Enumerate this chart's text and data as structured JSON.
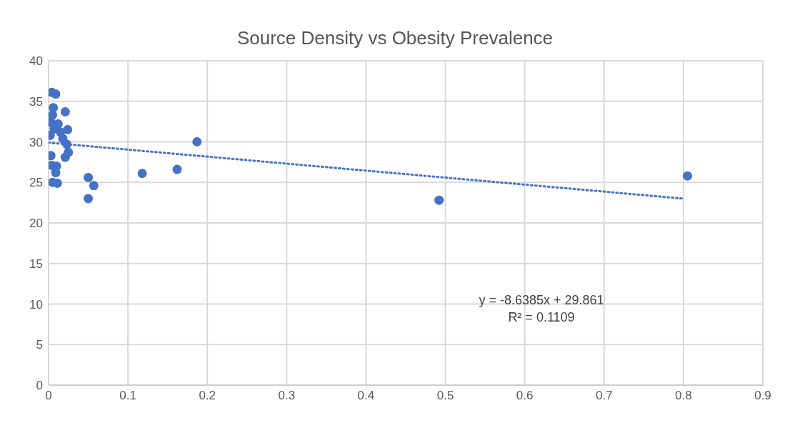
{
  "chart_data": {
    "type": "scatter",
    "title": "Source Density vs Obesity Prevalence",
    "series": [
      {
        "type": "scatter",
        "marker": "circle",
        "color": "#4472c4",
        "x": [
          0.004,
          0.009,
          0.006,
          0.021,
          0.005,
          0.003,
          0.012,
          0.007,
          0.015,
          0.024,
          0.002,
          0.018,
          0.023,
          0.025,
          0.003,
          0.021,
          0.004,
          0.01,
          0.009,
          0.005,
          0.011,
          0.05,
          0.05,
          0.057,
          0.118,
          0.162,
          0.187,
          0.492,
          0.805
        ],
        "values": [
          36.1,
          35.9,
          34.2,
          33.7,
          33.3,
          32.4,
          32.2,
          31.6,
          31.2,
          31.5,
          30.8,
          30.4,
          29.7,
          28.7,
          28.3,
          28.1,
          27.1,
          27.0,
          26.2,
          25.0,
          24.9,
          25.6,
          23.0,
          24.6,
          26.1,
          26.6,
          30.0,
          22.8,
          25.8
        ]
      },
      {
        "type": "line",
        "line_style": "dotted",
        "marker": "none",
        "color": "#4472c4",
        "x": [
          0,
          0.8
        ],
        "values": [
          29.9,
          23.0
        ]
      }
    ],
    "xlim": [
      0,
      0.9
    ],
    "xticks": [
      0,
      0.1,
      0.2,
      0.3,
      0.4,
      0.5,
      0.6,
      0.7,
      0.8,
      0.9
    ],
    "ylim": [
      0,
      40
    ],
    "yticks": [
      0,
      5,
      10,
      15,
      20,
      25,
      30,
      35,
      40
    ],
    "grid": true,
    "annotations": [
      "y = -8.6385x + 29.861",
      "R² = 0.1109"
    ]
  }
}
